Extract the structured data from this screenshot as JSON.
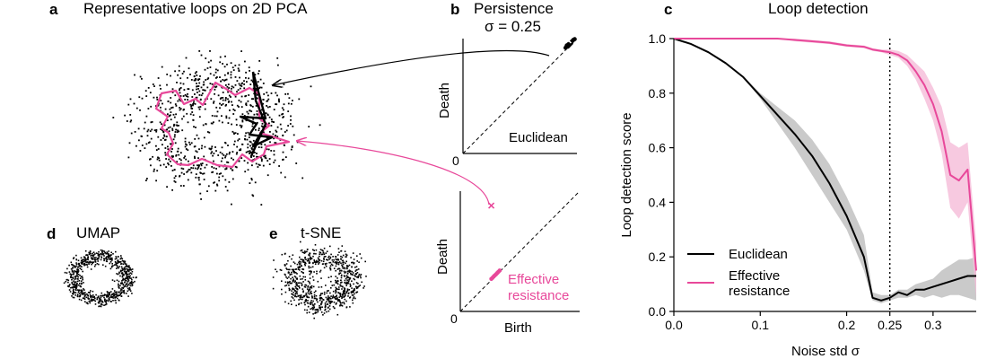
{
  "panels": {
    "a": {
      "label": "a",
      "title": "Representative loops on 2D PCA"
    },
    "b": {
      "label": "b",
      "title": "Persistence",
      "sigma_label": "σ = 0.25",
      "top": {
        "ylabel": "Death",
        "tick0": "0",
        "legend": "Euclidean"
      },
      "bottom": {
        "ylabel": "Death",
        "xlabel": "Birth",
        "tick0": "0",
        "legend_line1": "Effective",
        "legend_line2": "resistance"
      }
    },
    "c": {
      "label": "c",
      "title": "Loop detection"
    },
    "d": {
      "label": "d",
      "title": "UMAP"
    },
    "e": {
      "label": "e",
      "title": "t-SNE"
    }
  },
  "colors": {
    "euclidean": "#000000",
    "effective_resistance": "#e8489a",
    "euclidean_band": "#bdbdbd",
    "er_band": "#f5bcd8"
  },
  "chart_data": [
    {
      "type": "line",
      "title": "Loop detection",
      "xlabel": "Noise std σ",
      "ylabel": "Loop detection score",
      "xlim": [
        0,
        0.35
      ],
      "ylim": [
        0,
        1.0
      ],
      "xticks": [
        0.0,
        0.1,
        0.2,
        0.25,
        0.3
      ],
      "xtick_labels": [
        "0.0",
        "0.1",
        "0.2",
        "0.25",
        "0.3"
      ],
      "yticks": [
        0.0,
        0.2,
        0.4,
        0.6,
        0.8,
        1.0
      ],
      "ytick_labels": [
        "0.0",
        "0.2",
        "0.4",
        "0.6",
        "0.8",
        "1.0"
      ],
      "vline": 0.25,
      "legend_position": "lower-left",
      "x": [
        0.0,
        0.02,
        0.04,
        0.06,
        0.08,
        0.1,
        0.12,
        0.14,
        0.16,
        0.18,
        0.2,
        0.22,
        0.23,
        0.24,
        0.25,
        0.26,
        0.27,
        0.28,
        0.29,
        0.3,
        0.31,
        0.32,
        0.33,
        0.34,
        0.35
      ],
      "series": [
        {
          "name": "Euclidean",
          "color_key": "euclidean",
          "values": [
            1.0,
            0.98,
            0.95,
            0.91,
            0.86,
            0.79,
            0.72,
            0.65,
            0.57,
            0.47,
            0.35,
            0.2,
            0.05,
            0.04,
            0.05,
            0.07,
            0.06,
            0.08,
            0.08,
            0.09,
            0.1,
            0.11,
            0.12,
            0.13,
            0.13
          ],
          "band_low": [
            1.0,
            0.98,
            0.95,
            0.91,
            0.86,
            0.78,
            0.69,
            0.6,
            0.5,
            0.4,
            0.3,
            0.15,
            0.04,
            0.03,
            0.04,
            0.05,
            0.05,
            0.06,
            0.05,
            0.06,
            0.05,
            0.06,
            0.06,
            0.05,
            0.04
          ],
          "band_high": [
            1.0,
            0.98,
            0.95,
            0.91,
            0.86,
            0.8,
            0.75,
            0.7,
            0.63,
            0.54,
            0.42,
            0.28,
            0.07,
            0.06,
            0.06,
            0.08,
            0.08,
            0.1,
            0.11,
            0.12,
            0.15,
            0.17,
            0.19,
            0.19,
            0.2
          ]
        },
        {
          "name": "Effective resistance",
          "color_key": "effective_resistance",
          "values": [
            1.0,
            1.0,
            1.0,
            1.0,
            1.0,
            1.0,
            1.0,
            0.995,
            0.99,
            0.985,
            0.975,
            0.97,
            0.96,
            0.955,
            0.95,
            0.94,
            0.92,
            0.88,
            0.83,
            0.76,
            0.66,
            0.5,
            0.48,
            0.52,
            0.15
          ],
          "band_low": [
            1.0,
            1.0,
            1.0,
            1.0,
            1.0,
            1.0,
            1.0,
            0.99,
            0.985,
            0.98,
            0.97,
            0.965,
            0.955,
            0.95,
            0.94,
            0.93,
            0.9,
            0.85,
            0.78,
            0.7,
            0.58,
            0.38,
            0.34,
            0.4,
            0.05
          ],
          "band_high": [
            1.0,
            1.0,
            1.0,
            1.0,
            1.0,
            1.0,
            1.0,
            1.0,
            0.995,
            0.99,
            0.98,
            0.975,
            0.965,
            0.96,
            0.96,
            0.955,
            0.94,
            0.91,
            0.88,
            0.82,
            0.75,
            0.62,
            0.6,
            0.62,
            0.25
          ]
        }
      ]
    },
    {
      "type": "scatter",
      "title": "Persistence (Euclidean)",
      "xlabel": "",
      "ylabel": "Death",
      "xlim": [
        0,
        1
      ],
      "ylim": [
        0,
        1
      ],
      "diagonal": true,
      "points_x": [
        0.9,
        0.92,
        0.93,
        0.94,
        0.95,
        0.91,
        0.96,
        0.97,
        0.94,
        0.92,
        0.95,
        0.98,
        0.93
      ],
      "points_y": [
        0.92,
        0.93,
        0.95,
        0.96,
        0.97,
        0.94,
        0.98,
        0.99,
        0.95,
        0.95,
        0.96,
        0.995,
        0.94
      ],
      "marked_point": [
        0.925,
        0.985
      ]
    },
    {
      "type": "scatter",
      "title": "Persistence (Effective resistance)",
      "xlabel": "Birth",
      "ylabel": "Death",
      "xlim": [
        0,
        1
      ],
      "ylim": [
        0,
        1
      ],
      "diagonal": true,
      "points_x": [
        0.26,
        0.27,
        0.28,
        0.29,
        0.3,
        0.31,
        0.32,
        0.33
      ],
      "points_y": [
        0.27,
        0.28,
        0.29,
        0.3,
        0.31,
        0.32,
        0.33,
        0.34
      ],
      "marked_point": [
        0.26,
        0.88
      ]
    }
  ]
}
